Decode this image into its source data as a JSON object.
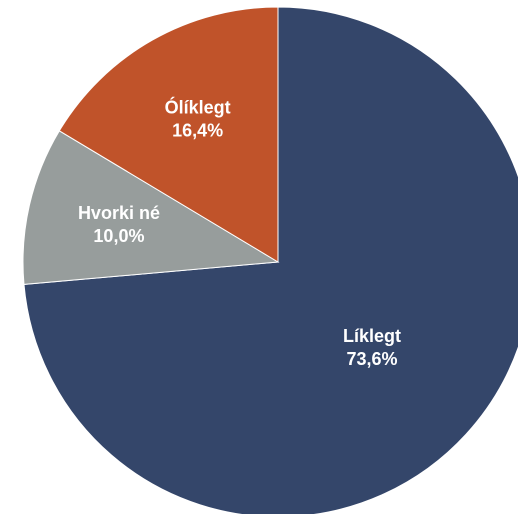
{
  "chart_data": {
    "type": "pie",
    "categories": [
      "Líklegt",
      "Hvorki né",
      "Ólíklegt"
    ],
    "values": [
      73.6,
      10.0,
      16.4
    ],
    "value_labels": [
      "73,6%",
      "10,0%",
      "16,4%"
    ],
    "colors": [
      "#34466a",
      "#979d9c",
      "#c0532a"
    ]
  }
}
